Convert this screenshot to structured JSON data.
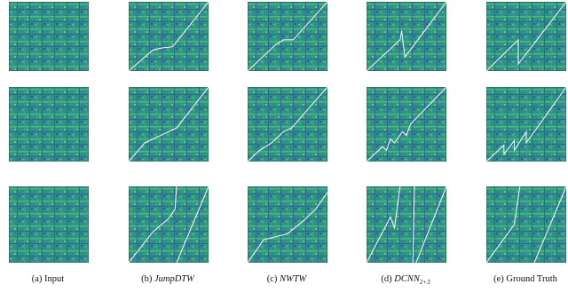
{
  "figure": {
    "captions": [
      {
        "label": "(a)",
        "name": "Input"
      },
      {
        "label": "(b)",
        "name": "JumpDTW"
      },
      {
        "label": "(c)",
        "name": "NWTW"
      },
      {
        "label": "(d)",
        "name": "DCNN",
        "subscript": "2+3"
      },
      {
        "label": "(e)",
        "name": "Ground Truth"
      }
    ]
  }
}
